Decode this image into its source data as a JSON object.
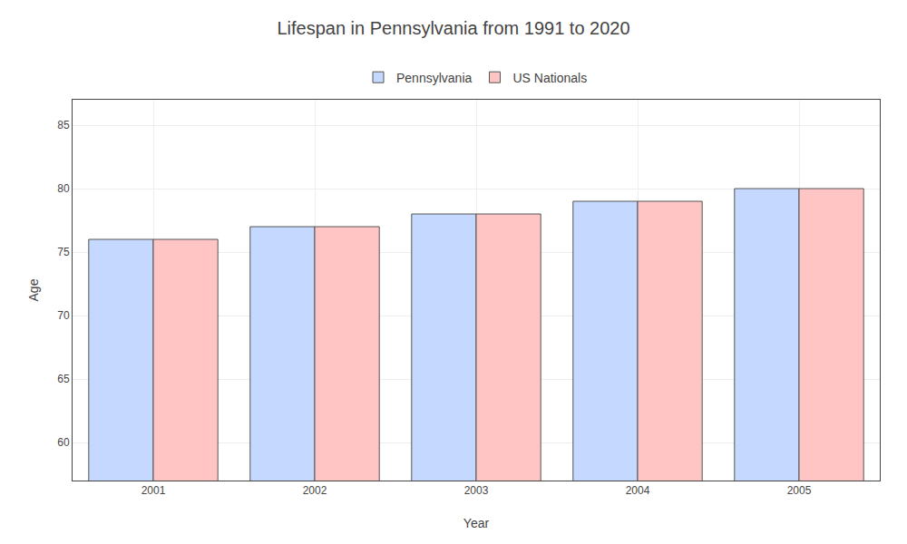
{
  "chart_data": {
    "type": "bar",
    "title": "Lifespan in Pennsylvania from 1991 to 2020",
    "xlabel": "Year",
    "ylabel": "Age",
    "categories": [
      "2001",
      "2002",
      "2003",
      "2004",
      "2005"
    ],
    "series": [
      {
        "name": "Pennsylvania",
        "color": "#c5d8ff",
        "values": [
          76,
          77,
          78,
          79,
          80
        ]
      },
      {
        "name": "US Nationals",
        "color": "#ffc5c5",
        "values": [
          76,
          77,
          78,
          79,
          80
        ]
      }
    ],
    "ylim": [
      57,
      87
    ],
    "yticks": [
      60,
      65,
      70,
      75,
      80,
      85
    ],
    "grid": true,
    "legend": "upper center"
  }
}
